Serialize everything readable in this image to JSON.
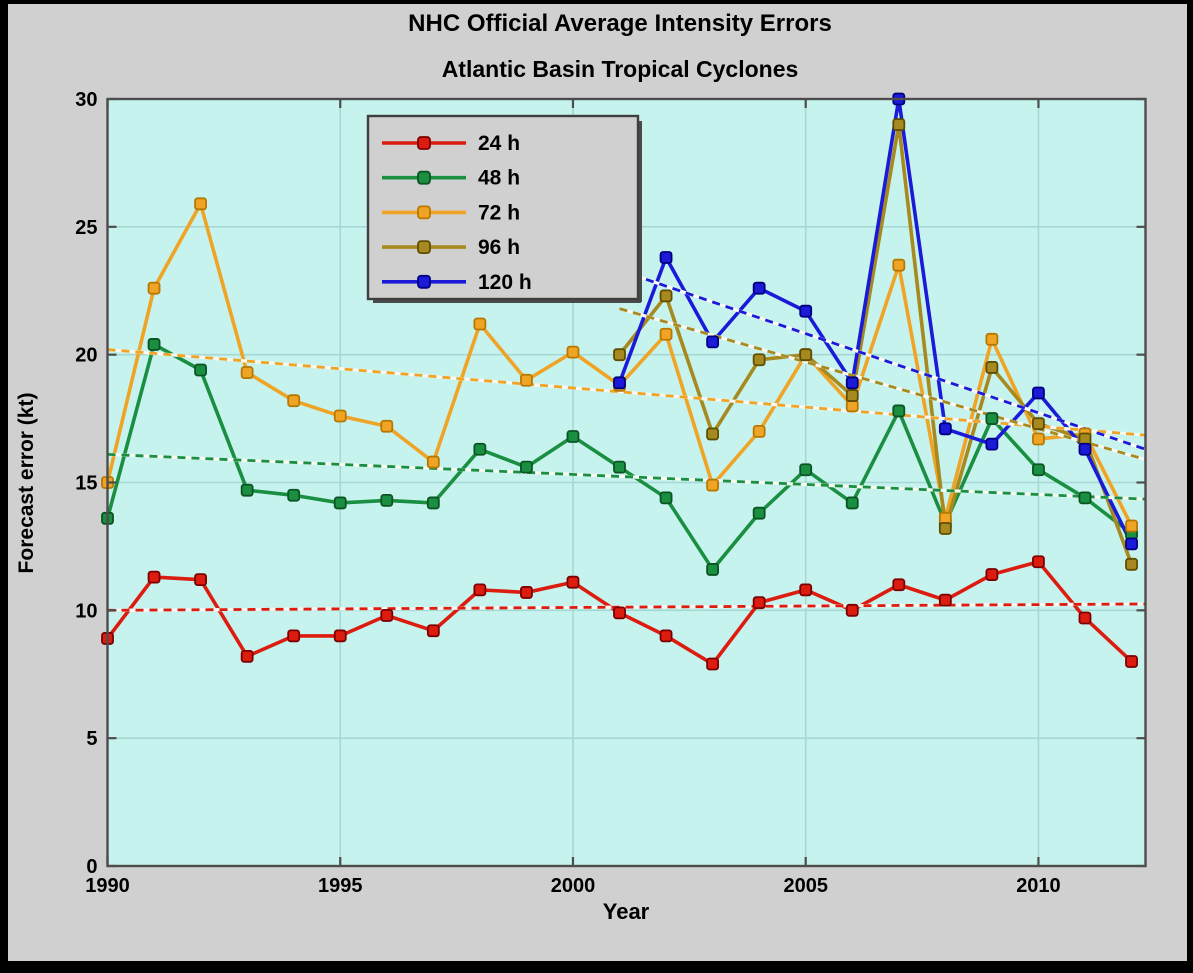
{
  "figure": {
    "title_line1": "NHC Official Average Intensity Errors",
    "title_line2": "Atlantic Basin Tropical Cyclones",
    "background": "#d0d0d0",
    "frame_color": "#000000"
  },
  "chart_data": {
    "type": "line",
    "title": "NHC Official Average Intensity Errors",
    "subtitle": "Atlantic Basin Tropical Cyclones",
    "xlabel": "Year",
    "ylabel": "Forecast error (kt)",
    "xlim": [
      1990,
      2012.3
    ],
    "ylim": [
      0,
      30
    ],
    "xticks": [
      1990,
      1995,
      2000,
      2005,
      2010
    ],
    "yticks": [
      0,
      5,
      10,
      15,
      20,
      25,
      30
    ],
    "grid": true,
    "plot_bg": "#c6f3ee",
    "grid_color": "#a5d8d3",
    "axis_color": "#4d4d4d",
    "legend": {
      "position": "upper-left-inside",
      "bg": "#d0d0d0",
      "border": "#3f3f3f"
    },
    "series": [
      {
        "name": "24 h",
        "id": "24h",
        "color": "#dd1c10",
        "edge": "#7a0000",
        "x": [
          1990,
          1991,
          1992,
          1993,
          1994,
          1995,
          1996,
          1997,
          1998,
          1999,
          2000,
          2001,
          2002,
          2003,
          2004,
          2005,
          2006,
          2007,
          2008,
          2009,
          2010,
          2011,
          2012
        ],
        "values": [
          8.9,
          11.3,
          11.2,
          8.2,
          9.0,
          9.0,
          9.8,
          9.2,
          10.8,
          10.7,
          11.1,
          9.9,
          9.0,
          7.9,
          10.3,
          10.8,
          10.0,
          11.0,
          10.4,
          11.4,
          11.9,
          9.7,
          8.0
        ],
        "trend": {
          "x": [
            1990,
            2012.3
          ],
          "y": [
            10.0,
            10.25
          ]
        }
      },
      {
        "name": "48 h",
        "id": "48h",
        "color": "#1b8f41",
        "edge": "#0a5424",
        "x": [
          1990,
          1991,
          1992,
          1993,
          1994,
          1995,
          1996,
          1997,
          1998,
          1999,
          2000,
          2001,
          2002,
          2003,
          2004,
          2005,
          2006,
          2007,
          2008,
          2009,
          2010,
          2011,
          2012
        ],
        "values": [
          13.6,
          20.4,
          19.4,
          14.7,
          14.5,
          14.2,
          14.3,
          14.2,
          16.3,
          15.6,
          16.8,
          15.6,
          14.4,
          11.6,
          13.8,
          15.5,
          14.2,
          17.8,
          13.4,
          17.5,
          15.5,
          14.4,
          13.0
        ],
        "trend": {
          "x": [
            1990,
            2012.3
          ],
          "y": [
            16.1,
            14.35
          ]
        }
      },
      {
        "name": "72 h",
        "id": "72h",
        "color": "#efa426",
        "edge": "#b87800",
        "x": [
          1990,
          1991,
          1992,
          1993,
          1994,
          1995,
          1996,
          1997,
          1998,
          1999,
          2000,
          2001,
          2002,
          2003,
          2004,
          2005,
          2006,
          2007,
          2008,
          2009,
          2010,
          2011,
          2012
        ],
        "values": [
          15.0,
          22.6,
          25.9,
          19.3,
          18.2,
          17.6,
          17.2,
          15.8,
          21.2,
          19.0,
          20.1,
          18.8,
          20.8,
          14.9,
          17.0,
          20.0,
          18.0,
          23.5,
          13.6,
          20.6,
          16.7,
          16.9,
          13.3
        ],
        "trend": {
          "x": [
            1990,
            2012.3
          ],
          "y": [
            20.2,
            16.85
          ]
        }
      },
      {
        "name": "96 h",
        "id": "96h",
        "color": "#a6891f",
        "edge": "#5f4d00",
        "x": [
          2001,
          2002,
          2003,
          2004,
          2005,
          2006,
          2007,
          2008,
          2009,
          2010,
          2011,
          2012
        ],
        "values": [
          20.0,
          22.3,
          16.9,
          19.8,
          20.0,
          18.4,
          29.0,
          13.2,
          19.5,
          17.3,
          16.7,
          11.8
        ],
        "trend": {
          "x": [
            2001,
            2012.3
          ],
          "y": [
            21.8,
            15.9
          ]
        }
      },
      {
        "name": "120 h",
        "id": "120h",
        "color": "#1a1ad8",
        "edge": "#00007e",
        "x": [
          2001,
          2002,
          2003,
          2004,
          2005,
          2006,
          2007,
          2008,
          2009,
          2010,
          2011,
          2012
        ],
        "values": [
          18.9,
          23.8,
          20.5,
          22.6,
          21.7,
          18.9,
          30.0,
          17.1,
          16.5,
          18.5,
          16.3,
          12.6
        ],
        "trend": {
          "x": [
            2001,
            2012.3
          ],
          "y": [
            23.3,
            16.3
          ]
        }
      }
    ]
  }
}
